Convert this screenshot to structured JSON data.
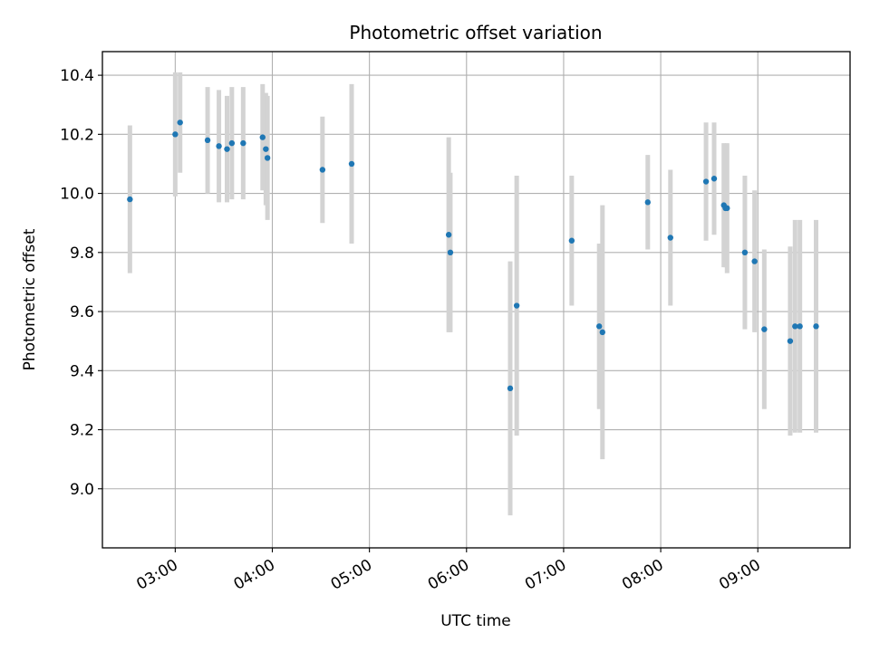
{
  "chart_data": {
    "type": "scatter",
    "title": "Photometric offset variation",
    "xlabel": "UTC time",
    "ylabel": "Photometric offset",
    "x_ticks": [
      "03:00",
      "04:00",
      "05:00",
      "06:00",
      "07:00",
      "08:00",
      "09:00"
    ],
    "y_ticks": [
      "9.0",
      "9.2",
      "9.4",
      "9.6",
      "9.8",
      "10.0",
      "10.2",
      "10.4"
    ],
    "xlim": [
      "02:15",
      "09:57"
    ],
    "ylim": [
      8.8,
      10.48
    ],
    "grid": true,
    "colors": {
      "point": "#1f77b4",
      "errorbar": "#d3d3d3",
      "grid": "#b0b0b0"
    },
    "points": [
      {
        "x": "02:32",
        "y": 9.98,
        "err": 0.25
      },
      {
        "x": "03:00",
        "y": 10.2,
        "err": 0.21
      },
      {
        "x": "03:03",
        "y": 10.24,
        "err": 0.17
      },
      {
        "x": "03:20",
        "y": 10.18,
        "err": 0.18
      },
      {
        "x": "03:27",
        "y": 10.16,
        "err": 0.19
      },
      {
        "x": "03:32",
        "y": 10.15,
        "err": 0.18
      },
      {
        "x": "03:35",
        "y": 10.17,
        "err": 0.19
      },
      {
        "x": "03:42",
        "y": 10.17,
        "err": 0.19
      },
      {
        "x": "03:54",
        "y": 10.19,
        "err": 0.18
      },
      {
        "x": "03:56",
        "y": 10.15,
        "err": 0.19
      },
      {
        "x": "03:57",
        "y": 10.12,
        "err": 0.21
      },
      {
        "x": "04:31",
        "y": 10.08,
        "err": 0.18
      },
      {
        "x": "04:49",
        "y": 10.1,
        "err": 0.27
      },
      {
        "x": "05:49",
        "y": 9.86,
        "err": 0.33
      },
      {
        "x": "05:50",
        "y": 9.8,
        "err": 0.27
      },
      {
        "x": "06:27",
        "y": 9.34,
        "err": 0.43
      },
      {
        "x": "06:31",
        "y": 9.62,
        "err": 0.44
      },
      {
        "x": "07:05",
        "y": 9.84,
        "err": 0.22
      },
      {
        "x": "07:22",
        "y": 9.55,
        "err": 0.28
      },
      {
        "x": "07:24",
        "y": 9.53,
        "err": 0.43
      },
      {
        "x": "07:52",
        "y": 9.97,
        "err": 0.16
      },
      {
        "x": "08:06",
        "y": 9.85,
        "err": 0.23
      },
      {
        "x": "08:28",
        "y": 10.04,
        "err": 0.2
      },
      {
        "x": "08:33",
        "y": 10.05,
        "err": 0.19
      },
      {
        "x": "08:39",
        "y": 9.96,
        "err": 0.21
      },
      {
        "x": "08:40",
        "y": 9.95,
        "err": 0.2
      },
      {
        "x": "08:41",
        "y": 9.95,
        "err": 0.22
      },
      {
        "x": "08:52",
        "y": 9.8,
        "err": 0.26
      },
      {
        "x": "08:58",
        "y": 9.77,
        "err": 0.24
      },
      {
        "x": "09:04",
        "y": 9.54,
        "err": 0.27
      },
      {
        "x": "09:20",
        "y": 9.5,
        "err": 0.32
      },
      {
        "x": "09:23",
        "y": 9.55,
        "err": 0.36
      },
      {
        "x": "09:26",
        "y": 9.55,
        "err": 0.36
      },
      {
        "x": "09:36",
        "y": 9.55,
        "err": 0.36
      }
    ]
  }
}
